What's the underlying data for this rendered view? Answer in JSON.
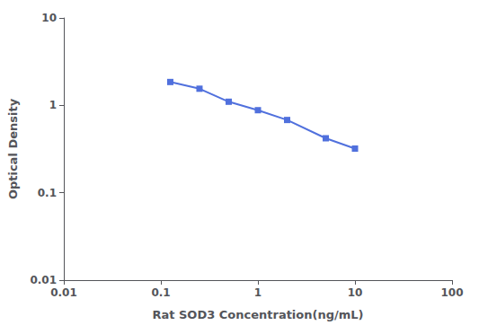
{
  "chart_data": {
    "type": "line",
    "x": [
      0.125,
      0.25,
      0.5,
      1.0,
      2.0,
      5.0,
      10.0
    ],
    "values": [
      1.85,
      1.55,
      1.1,
      0.88,
      0.68,
      0.42,
      0.32
    ],
    "xlabel": "Rat SOD3 Concentration(ng/mL)",
    "ylabel": "Optical Density",
    "xlim": [
      0.01,
      100
    ],
    "ylim": [
      0.01,
      10
    ],
    "xticks": [
      0.01,
      0.1,
      1,
      10,
      100
    ],
    "yticks": [
      0.01,
      0.1,
      1,
      10
    ],
    "log": true,
    "grid": false,
    "marker": "square"
  }
}
